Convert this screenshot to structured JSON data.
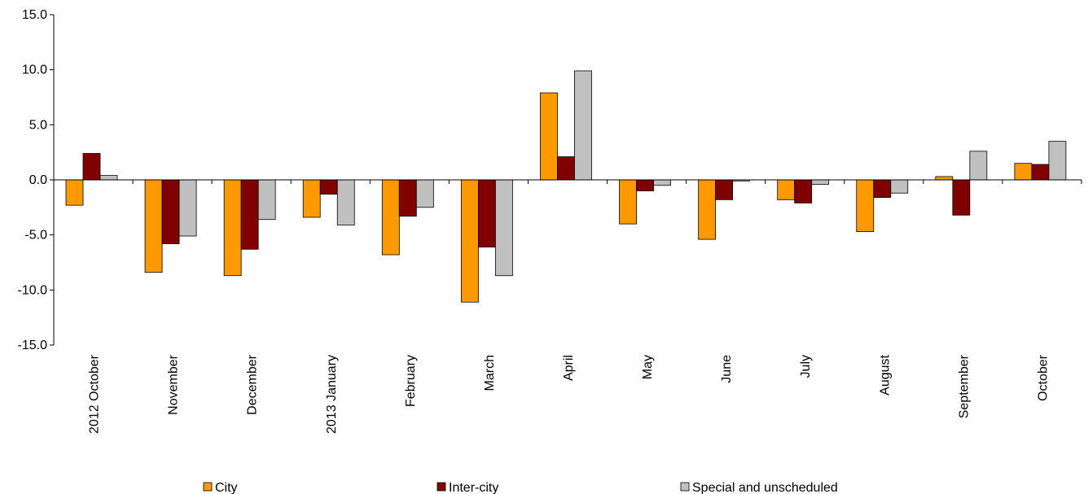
{
  "chart_data": {
    "type": "bar",
    "title": "",
    "xlabel": "",
    "ylabel": "",
    "ylim": [
      -15,
      15
    ],
    "yticks": [
      -15,
      -10,
      -5,
      0,
      5,
      10,
      15
    ],
    "ytick_labels": [
      "-15.0",
      "-10.0",
      "-5.0",
      "0.0",
      "5.0",
      "10.0",
      "15.0"
    ],
    "grid": false,
    "legend_position": "bottom",
    "categories": [
      "2012 October",
      "November",
      "December",
      "2013 January",
      "February",
      "March",
      "April",
      "May",
      "June",
      "July",
      "August",
      "September",
      "October"
    ],
    "series": [
      {
        "name": "City",
        "color": "#FF9900",
        "values": [
          -2.3,
          -8.4,
          -8.7,
          -3.4,
          -6.8,
          -11.1,
          7.9,
          -4.0,
          -5.4,
          -1.8,
          -4.7,
          0.3,
          1.5
        ]
      },
      {
        "name": "Inter-city",
        "color": "#800000",
        "values": [
          2.4,
          -5.8,
          -6.3,
          -1.3,
          -3.3,
          -6.1,
          2.1,
          -1.0,
          -1.8,
          -2.1,
          -1.6,
          -3.2,
          1.4
        ]
      },
      {
        "name": "Special and unscheduled",
        "color": "#C0C0C0",
        "values": [
          0.4,
          -5.1,
          -3.6,
          -4.1,
          -2.5,
          -8.7,
          9.9,
          -0.5,
          -0.1,
          -0.4,
          -1.2,
          2.6,
          3.5
        ]
      }
    ]
  }
}
